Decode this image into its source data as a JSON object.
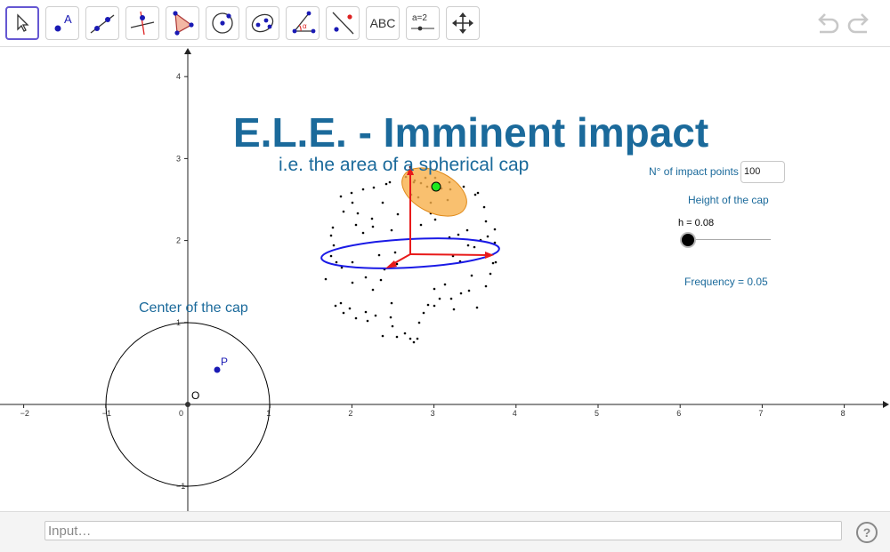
{
  "toolbar": {
    "tools": [
      {
        "name": "move-tool",
        "selected": true
      },
      {
        "name": "point-tool"
      },
      {
        "name": "line-tool"
      },
      {
        "name": "perpendicular-line-tool"
      },
      {
        "name": "polygon-tool"
      },
      {
        "name": "circle-center-point-tool"
      },
      {
        "name": "ellipse-tool"
      },
      {
        "name": "angle-tool"
      },
      {
        "name": "reflect-about-line-tool"
      },
      {
        "name": "text-tool",
        "label": "ABC"
      },
      {
        "name": "slider-tool",
        "label": "a=2"
      },
      {
        "name": "move-graphics-view-tool"
      }
    ],
    "undo_icon": "undo-icon",
    "redo_icon": "redo-icon"
  },
  "graphics": {
    "title": "E.L.E. - Imminent impact",
    "subtitle": "i.e. the area of a spherical cap",
    "impact_points_label": "N° of impact points",
    "impact_points_value": "100",
    "height_label": "Height of the cap",
    "h_text": "h = 0.08",
    "h_value": 0.08,
    "frequency_text": "Frequency = 0.05",
    "center_label": "Center of the cap",
    "point_p_label": "P",
    "origin_label": "O",
    "x_ticks": [
      "−2",
      "−1",
      "0",
      "1",
      "2",
      "3",
      "4",
      "5",
      "6",
      "7",
      "8"
    ],
    "y_ticks": [
      "4",
      "3",
      "2",
      "1",
      "−1"
    ],
    "colors": {
      "title": "#1b6a9b",
      "cap": "#f8b04b",
      "equator": "#1a1ae6",
      "axes_arrows": "#e81a1a",
      "center_point": "#1ee81e",
      "point_p": "#1a1ab4"
    }
  },
  "input_bar": {
    "placeholder": "Input…",
    "help_icon": "?"
  }
}
